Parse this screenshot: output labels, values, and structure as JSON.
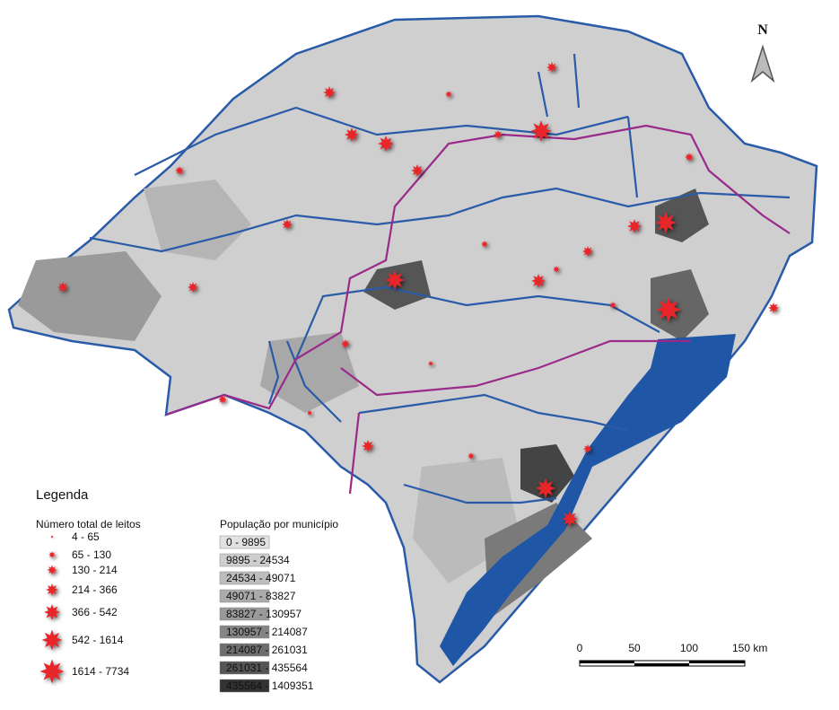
{
  "north": "N",
  "legend": {
    "title": "Legenda",
    "beds": {
      "title": "Número total de leitos",
      "items": [
        "4 - 65",
        "65 - 130",
        "130 - 214",
        "214 - 366",
        "366 - 542",
        "542 - 1614",
        "1614 - 7734"
      ]
    },
    "population": {
      "title": "População por município",
      "items": [
        "0 - 9895",
        "9895 - 24534",
        "24534 - 49071",
        "49071 - 83827",
        "83827 - 130957",
        "130957 - 214087",
        "214087 - 261031",
        "261031 - 435564",
        "435564 - 1409351"
      ]
    }
  },
  "scale": {
    "labels": [
      "0",
      "50",
      "100",
      "150 km"
    ]
  }
}
